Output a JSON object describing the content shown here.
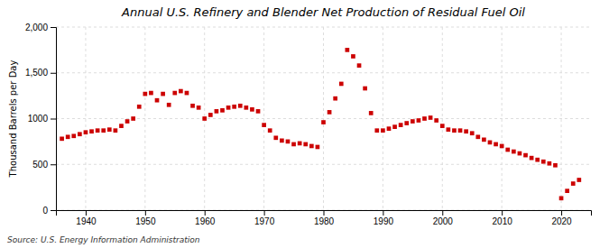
{
  "chart_data": {
    "type": "scatter",
    "title": "Annual U.S. Refinery and Blender Net Production of Residual Fuel Oil",
    "ylabel": "Thousand Barrels per Day",
    "source": "Source: U.S. Energy Information Administration",
    "color": "#cc0000",
    "marker": "square",
    "grid": true,
    "xlim": [
      1935,
      2025
    ],
    "ylim": [
      0,
      2000
    ],
    "xticks": [
      1940,
      1950,
      1960,
      1970,
      1980,
      1990,
      2000,
      2010,
      2020
    ],
    "yticks": [
      0,
      500,
      1000,
      {
        "value": 1500,
        "label": "1,500"
      },
      {
        "value": 2000,
        "label": "2,000"
      }
    ],
    "x": [
      1936,
      1937,
      1938,
      1939,
      1940,
      1941,
      1942,
      1943,
      1944,
      1945,
      1946,
      1947,
      1948,
      1949,
      1950,
      1951,
      1952,
      1953,
      1954,
      1955,
      1956,
      1957,
      1958,
      1959,
      1960,
      1961,
      1962,
      1963,
      1964,
      1965,
      1966,
      1967,
      1968,
      1969,
      1970,
      1971,
      1972,
      1973,
      1974,
      1975,
      1976,
      1977,
      1978,
      1979,
      1980,
      1981,
      1982,
      1983,
      1984,
      1985,
      1986,
      1987,
      1988,
      1989,
      1990,
      1991,
      1992,
      1993,
      1994,
      1995,
      1996,
      1997,
      1998,
      1999,
      2000,
      2001,
      2002,
      2003,
      2004,
      2005,
      2006,
      2007,
      2008,
      2009,
      2010,
      2011,
      2012,
      2013,
      2014,
      2015,
      2016,
      2017,
      2018,
      2019,
      2020,
      2021,
      2022,
      2023
    ],
    "values": [
      780,
      800,
      810,
      830,
      850,
      860,
      870,
      870,
      880,
      870,
      920,
      970,
      1000,
      1130,
      1270,
      1280,
      1200,
      1270,
      1150,
      1280,
      1300,
      1280,
      1140,
      1120,
      1000,
      1040,
      1080,
      1090,
      1120,
      1130,
      1140,
      1120,
      1100,
      1080,
      930,
      870,
      790,
      760,
      750,
      720,
      730,
      720,
      700,
      690,
      960,
      1070,
      1220,
      1380,
      1750,
      1680,
      1580,
      1330,
      1060,
      870,
      870,
      890,
      910,
      930,
      950,
      970,
      980,
      1000,
      1010,
      980,
      920,
      880,
      870,
      870,
      860,
      840,
      800,
      770,
      740,
      720,
      700,
      660,
      640,
      620,
      600,
      570,
      550,
      530,
      510,
      490,
      130,
      210,
      290,
      330
    ]
  }
}
